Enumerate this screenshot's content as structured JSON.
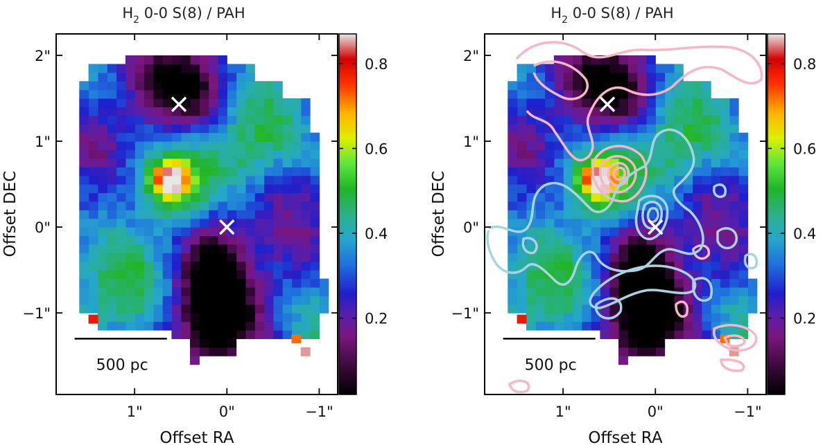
{
  "chart_data": [
    {
      "type": "heatmap",
      "title_main": "H",
      "title_sub": "2",
      "title_rest": " 0-0 S(8) / PAH",
      "xlabel": "Offset RA",
      "ylabel": "Offset DEC",
      "xlim": [
        1.85,
        -1.2
      ],
      "ylim": [
        -1.95,
        2.25
      ],
      "x_ticks": [
        {
          "v": 1,
          "label": "1\""
        },
        {
          "v": 0,
          "label": "0\""
        },
        {
          "v": -1,
          "label": "−1\""
        }
      ],
      "y_ticks": [
        {
          "v": 2,
          "label": "2\""
        },
        {
          "v": 1,
          "label": "1\""
        },
        {
          "v": 0,
          "label": "0\""
        },
        {
          "v": -1,
          "label": "−1\""
        }
      ],
      "colorbar": {
        "range": [
          0.02,
          0.87
        ],
        "ticks": [
          {
            "v": 0.8,
            "label": "0.8"
          },
          {
            "v": 0.6,
            "label": "0.6"
          },
          {
            "v": 0.4,
            "label": "0.4"
          },
          {
            "v": 0.2,
            "label": "0.2"
          }
        ]
      },
      "markers": [
        {
          "x": 0.52,
          "y": 1.43
        },
        {
          "x": 0.0,
          "y": 0.0
        }
      ],
      "scale_bar": {
        "length_arcsec": 1.0,
        "label": "500 pc"
      },
      "contours": false
    },
    {
      "type": "heatmap",
      "title_main": "H",
      "title_sub": "2",
      "title_rest": " 0-0 S(8) / PAH",
      "xlabel": "Offset RA",
      "ylabel": "Offset DEC",
      "xlim": [
        1.85,
        -1.2
      ],
      "ylim": [
        -1.95,
        2.25
      ],
      "x_ticks": [
        {
          "v": 1,
          "label": "1\""
        },
        {
          "v": 0,
          "label": "0\""
        },
        {
          "v": -1,
          "label": "−1\""
        }
      ],
      "y_ticks": [
        {
          "v": 2,
          "label": "2\""
        },
        {
          "v": 1,
          "label": "1\""
        },
        {
          "v": 0,
          "label": "0\""
        },
        {
          "v": -1,
          "label": "−1\""
        }
      ],
      "colorbar": {
        "range": [
          0.02,
          0.87
        ],
        "ticks": [
          {
            "v": 0.8,
            "label": "0.8"
          },
          {
            "v": 0.6,
            "label": "0.6"
          },
          {
            "v": 0.4,
            "label": "0.4"
          },
          {
            "v": 0.2,
            "label": "0.2"
          }
        ]
      },
      "markers": [
        {
          "x": 0.52,
          "y": 1.43
        },
        {
          "x": 0.0,
          "y": 0.0
        }
      ],
      "scale_bar": {
        "length_arcsec": 1.0,
        "label": "500 pc"
      },
      "contours": true,
      "contour_colors": {
        "pink": "#f7b6c5",
        "blue": "#a9d3e3"
      }
    }
  ]
}
